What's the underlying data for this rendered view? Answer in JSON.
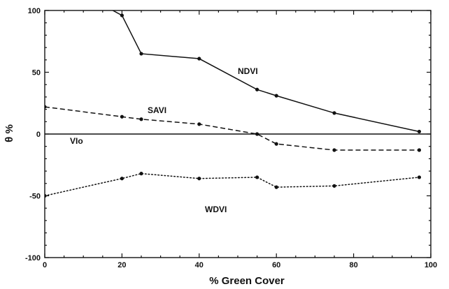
{
  "chart_data": {
    "type": "line",
    "title": "",
    "xlabel": "% Green Cover",
    "ylabel": "θ %",
    "xlim": [
      0,
      100
    ],
    "ylim": [
      -100,
      100
    ],
    "xticks": [
      0,
      20,
      40,
      60,
      80,
      100
    ],
    "yticks": [
      -100,
      -50,
      0,
      50,
      100
    ],
    "zero_line_label": "VIo",
    "grid": false,
    "series": [
      {
        "name": "NDVI",
        "style": "solid",
        "x": [
          0,
          20,
          25,
          40,
          55,
          60,
          75,
          97
        ],
        "y": [
          130,
          96,
          65,
          61,
          36,
          31,
          17,
          2
        ]
      },
      {
        "name": "SAVI",
        "style": "dashed",
        "x": [
          0,
          20,
          25,
          40,
          55,
          60,
          75,
          97
        ],
        "y": [
          22,
          14,
          12,
          8,
          0,
          -8,
          -13,
          -13
        ]
      },
      {
        "name": "WDVI",
        "style": "dotted",
        "x": [
          0,
          20,
          25,
          40,
          55,
          60,
          75,
          97
        ],
        "y": [
          -50,
          -36,
          -32,
          -36,
          -35,
          -43,
          -42,
          -35
        ]
      }
    ]
  }
}
